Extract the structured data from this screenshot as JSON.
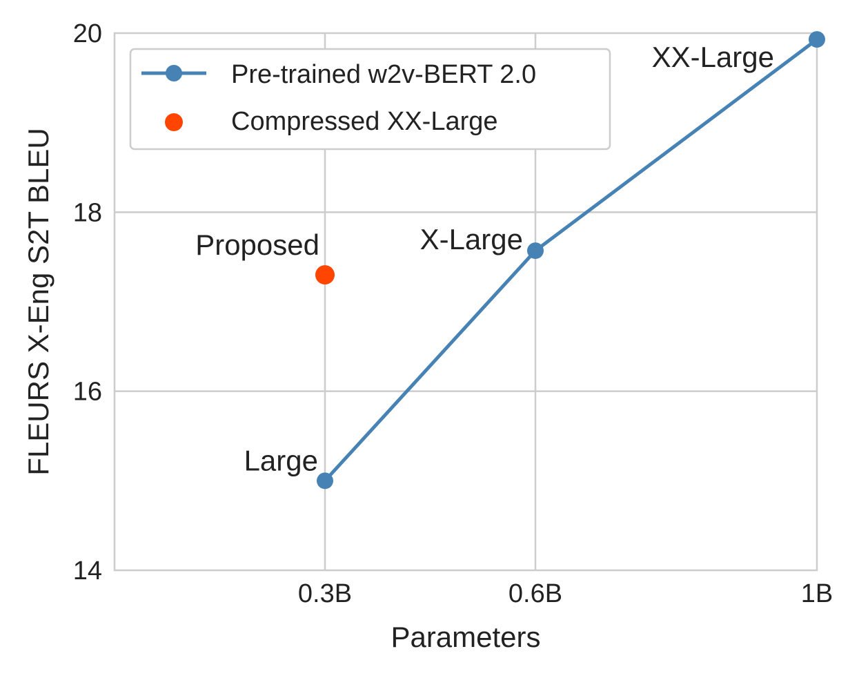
{
  "chart_data": {
    "type": "line",
    "xlabel": "Parameters",
    "ylabel": "FLEURS X-Eng S2T BLEU",
    "x_ticks": [
      "0.3B",
      "0.6B",
      "1B"
    ],
    "y_ticks": [
      14,
      16,
      18,
      20
    ],
    "ylim": [
      14,
      20
    ],
    "grid": true,
    "legend_position": "top-left",
    "series": [
      {
        "name": "Pre-trained w2v-BERT 2.0",
        "kind": "line-marker",
        "color": "#4682b4",
        "points": [
          {
            "x": "0.3B",
            "y": 15.0,
            "label": "Large"
          },
          {
            "x": "0.6B",
            "y": 17.57,
            "label": "X-Large"
          },
          {
            "x": "1B",
            "y": 19.93,
            "label": "XX-Large"
          }
        ]
      },
      {
        "name": "Compressed XX-Large",
        "kind": "scatter",
        "color": "#ff4500",
        "points": [
          {
            "x": "0.3B",
            "y": 17.3,
            "label": "Proposed"
          }
        ]
      }
    ]
  }
}
